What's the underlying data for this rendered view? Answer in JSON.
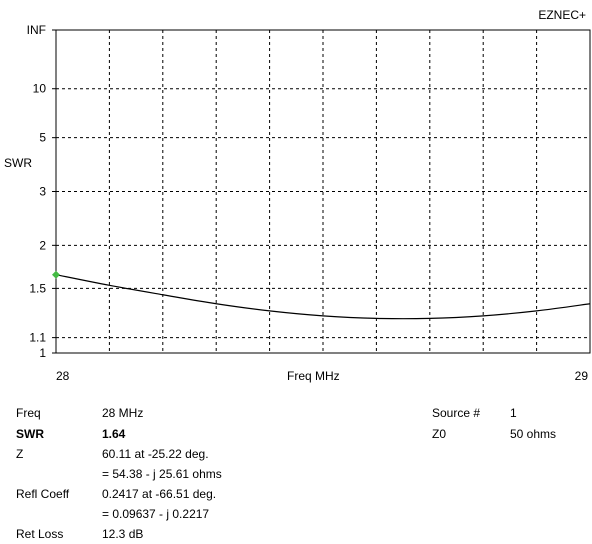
{
  "brand": "EZNEC+",
  "chart_data": {
    "type": "line",
    "xlabel": "Freq MHz",
    "ylabel": "SWR",
    "xlim": [
      28,
      29
    ],
    "x_ticks": [
      "28",
      "29"
    ],
    "y_scale": "swr",
    "y_ticks": [
      "INF",
      "10",
      "5",
      "3",
      "2",
      "1.5",
      "1.1",
      "1"
    ],
    "grid": true,
    "series": [
      {
        "x": [
          28.0,
          28.1,
          28.2,
          28.3,
          28.4,
          28.5,
          28.6,
          28.7,
          28.8,
          28.9,
          29.0
        ],
        "values": [
          1.64,
          1.53,
          1.44,
          1.36,
          1.3,
          1.26,
          1.24,
          1.24,
          1.26,
          1.3,
          1.36
        ]
      }
    ],
    "marker": {
      "x": 28.0,
      "value": 1.64
    },
    "colors": {
      "curve": "#000000",
      "marker": "#44bb44",
      "grid": "#000000"
    }
  },
  "readout": {
    "freq_label": "Freq",
    "freq_value": "28 MHz",
    "swr_label": "SWR",
    "swr_value": "1.64",
    "z_label": "Z",
    "z_value_polar": "60.11 at -25.22 deg.",
    "z_value_rect": "= 54.38 - j 25.61 ohms",
    "refl_label": "Refl Coeff",
    "refl_value_polar": "0.2417 at -66.51 deg.",
    "refl_value_rect": "= 0.09637 - j 0.2217",
    "retloss_label": "Ret Loss",
    "retloss_value": "12.3 dB",
    "source_label": "Source #",
    "source_value": "1",
    "z0_label": "Z0",
    "z0_value": "50 ohms"
  }
}
